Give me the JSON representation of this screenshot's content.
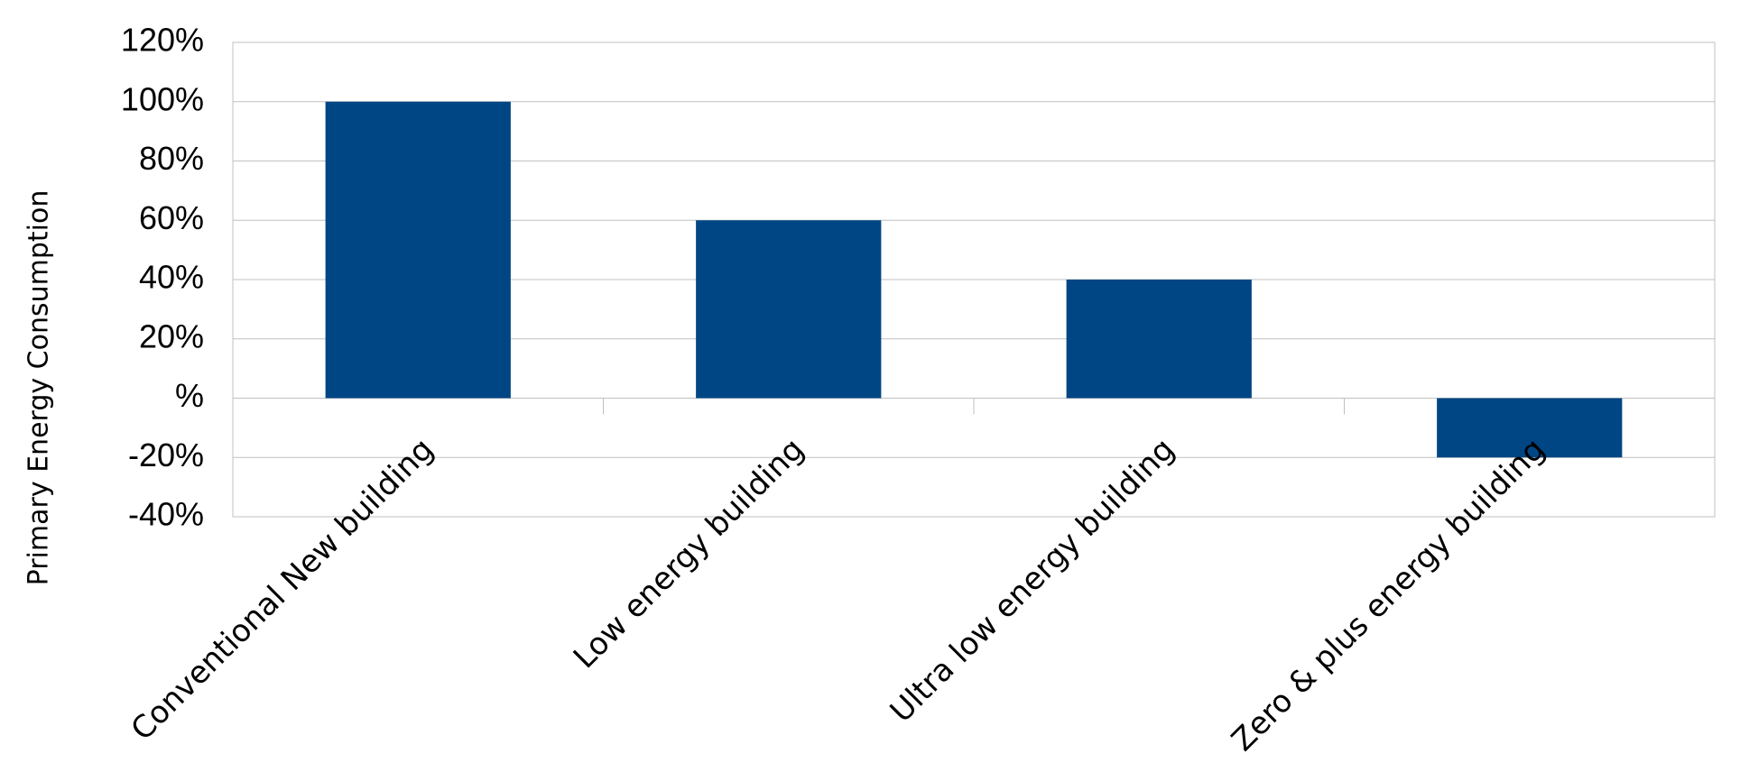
{
  "chart_data": {
    "type": "bar",
    "y_label": "Primary Energy Consumption",
    "categories": [
      "Conventional New building",
      "Low energy building",
      "Ultra low energy building",
      "Zero & plus energy building"
    ],
    "values": [
      100,
      60,
      40,
      -20
    ],
    "color": "#004684",
    "ylim": [
      -40,
      120
    ],
    "yticks": [
      {
        "value": -40,
        "label": "-40%"
      },
      {
        "value": -20,
        "label": "-20%"
      },
      {
        "value": 0,
        "label": "%"
      },
      {
        "value": 20,
        "label": "20%"
      },
      {
        "value": 40,
        "label": "40%"
      },
      {
        "value": 60,
        "label": "60%"
      },
      {
        "value": 80,
        "label": "80%"
      },
      {
        "value": 100,
        "label": "100%"
      },
      {
        "value": 120,
        "label": "120%"
      }
    ],
    "grid": true
  }
}
